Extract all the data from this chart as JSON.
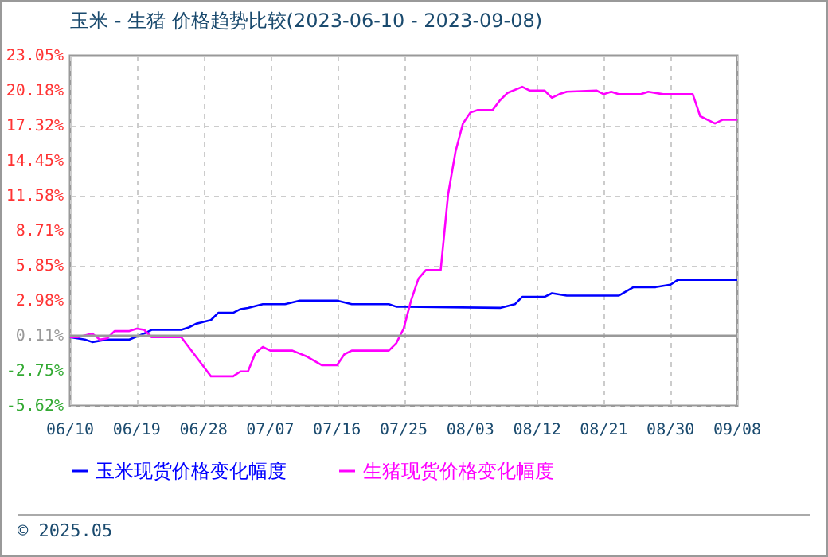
{
  "chart_data": {
    "type": "line",
    "title": "玉米 - 生猪 价格趋势比较(2023-06-10 - 2023-09-08)",
    "annotations": [
      "© 2025.05"
    ],
    "series": [
      {
        "name": "玉米现货价格变化幅度",
        "color": "#0000ff",
        "x": [
          "2023-06-10",
          "2023-06-12",
          "2023-06-13",
          "2023-06-15",
          "2023-06-18",
          "2023-06-20",
          "2023-06-21",
          "2023-06-25",
          "2023-06-26",
          "2023-06-27",
          "2023-06-29",
          "2023-06-30",
          "2023-07-02",
          "2023-07-03",
          "2023-07-04",
          "2023-07-06",
          "2023-07-09",
          "2023-07-11",
          "2023-07-16",
          "2023-07-18",
          "2023-07-23",
          "2023-07-24",
          "2023-08-07",
          "2023-08-09",
          "2023-08-10",
          "2023-08-13",
          "2023-08-14",
          "2023-08-16",
          "2023-08-23",
          "2023-08-25",
          "2023-08-28",
          "2023-08-30",
          "2023-08-31",
          "2023-09-08"
        ],
        "values": [
          0,
          -0.2,
          -0.4,
          -0.2,
          -0.2,
          0.3,
          0.6,
          0.6,
          0.8,
          1.1,
          1.4,
          2.0,
          2.0,
          2.3,
          2.4,
          2.7,
          2.7,
          3.0,
          3.0,
          2.7,
          2.7,
          2.5,
          2.4,
          2.7,
          3.3,
          3.3,
          3.6,
          3.4,
          3.4,
          4.1,
          4.1,
          4.3,
          4.7,
          4.7
        ]
      },
      {
        "name": "生猪现货价格变化幅度",
        "color": "#ff00ff",
        "x": [
          "2023-06-10",
          "2023-06-11",
          "2023-06-13",
          "2023-06-14",
          "2023-06-15",
          "2023-06-16",
          "2023-06-18",
          "2023-06-19",
          "2023-06-20",
          "2023-06-21",
          "2023-06-25",
          "2023-06-27",
          "2023-06-28",
          "2023-06-29",
          "2023-07-02",
          "2023-07-03",
          "2023-07-04",
          "2023-07-05",
          "2023-07-06",
          "2023-07-07",
          "2023-07-10",
          "2023-07-12",
          "2023-07-14",
          "2023-07-16",
          "2023-07-17",
          "2023-07-18",
          "2023-07-23",
          "2023-07-24",
          "2023-07-25",
          "2023-07-26",
          "2023-07-27",
          "2023-07-28",
          "2023-07-30",
          "2023-07-31",
          "2023-08-01",
          "2023-08-02",
          "2023-08-03",
          "2023-08-04",
          "2023-08-06",
          "2023-08-07",
          "2023-08-08",
          "2023-08-10",
          "2023-08-11",
          "2023-08-13",
          "2023-08-14",
          "2023-08-15",
          "2023-08-16",
          "2023-08-20",
          "2023-08-21",
          "2023-08-22",
          "2023-08-23",
          "2023-08-26",
          "2023-08-27",
          "2023-08-29",
          "2023-09-02",
          "2023-09-03",
          "2023-09-05",
          "2023-09-06",
          "2023-09-08"
        ],
        "values": [
          0,
          0,
          0.3,
          -0.2,
          -0.1,
          0.5,
          0.5,
          0.7,
          0.6,
          0,
          0,
          -1.6,
          -2.4,
          -3.2,
          -3.2,
          -2.8,
          -2.8,
          -1.3,
          -0.8,
          -1.1,
          -1.1,
          -1.6,
          -2.3,
          -2.3,
          -1.4,
          -1.1,
          -1.1,
          -0.5,
          0.7,
          3.0,
          4.8,
          5.5,
          5.5,
          11.7,
          15.2,
          17.5,
          18.4,
          18.6,
          18.6,
          19.4,
          20.0,
          20.5,
          20.2,
          20.2,
          19.6,
          19.9,
          20.1,
          20.2,
          19.9,
          20.1,
          19.9,
          19.9,
          20.1,
          19.9,
          19.9,
          18.1,
          17.5,
          17.8,
          17.8
        ]
      }
    ],
    "xlim": [
      "2023-06-10",
      "2023-09-08"
    ],
    "xticks": [
      {
        "value": "2023-06-10",
        "label": "06/10"
      },
      {
        "value": "2023-06-19",
        "label": "06/19"
      },
      {
        "value": "2023-06-28",
        "label": "06/28"
      },
      {
        "value": "2023-07-07",
        "label": "07/07"
      },
      {
        "value": "2023-07-16",
        "label": "07/16"
      },
      {
        "value": "2023-07-25",
        "label": "07/25"
      },
      {
        "value": "2023-08-03",
        "label": "08/03"
      },
      {
        "value": "2023-08-12",
        "label": "08/12"
      },
      {
        "value": "2023-08-21",
        "label": "08/21"
      },
      {
        "value": "2023-08-30",
        "label": "08/30"
      },
      {
        "value": "2023-09-08",
        "label": "09/08"
      }
    ],
    "ylim": [
      -5.62,
      23.05
    ],
    "yticks": [
      {
        "value": -5.62,
        "label": "-5.62%"
      },
      {
        "value": -2.75,
        "label": "-2.75%"
      },
      {
        "value": 0.11,
        "label": "0.11%"
      },
      {
        "value": 2.98,
        "label": "2.98%"
      },
      {
        "value": 5.85,
        "label": "5.85%"
      },
      {
        "value": 8.71,
        "label": "8.71%"
      },
      {
        "value": 11.58,
        "label": "11.58%"
      },
      {
        "value": 14.45,
        "label": "14.45%"
      },
      {
        "value": 17.32,
        "label": "17.32%"
      },
      {
        "value": 20.18,
        "label": "20.18%"
      },
      {
        "value": 23.05,
        "label": "23.05%"
      }
    ],
    "ref_lines": [
      {
        "axis": "y",
        "value": 0.11,
        "color": "#999999"
      }
    ],
    "grid": true,
    "legend": "bottom",
    "line_style": "solid"
  }
}
